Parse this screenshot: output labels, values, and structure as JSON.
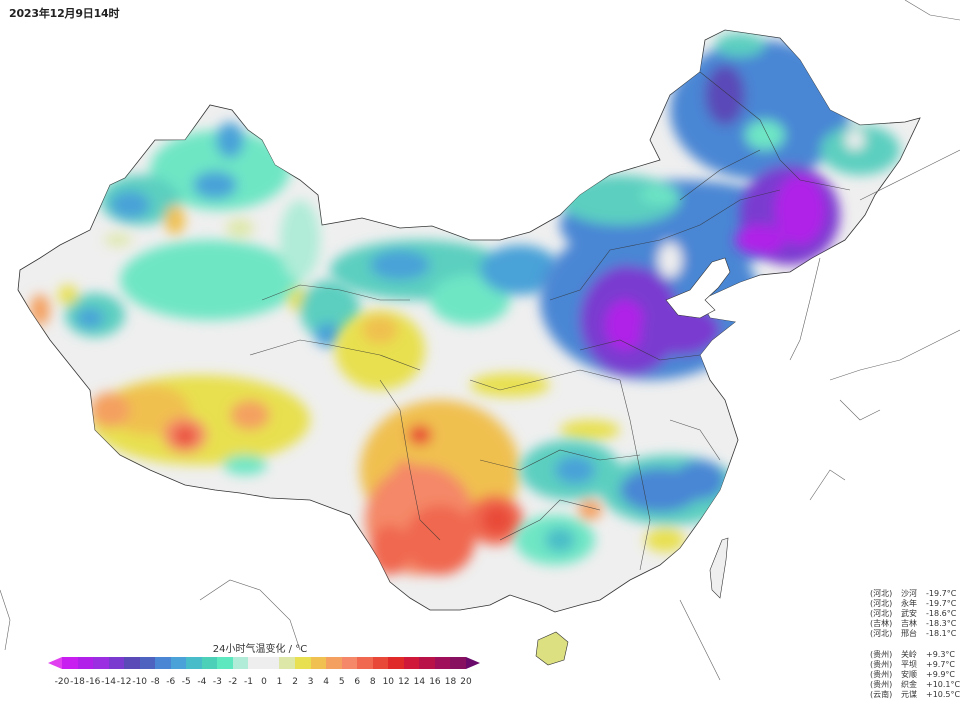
{
  "title": "2023年12月9日14时",
  "legend": {
    "title": "24小时气温变化 / °C",
    "ticks": [
      "-20",
      "-18",
      "-16",
      "-14",
      "-12",
      "-10",
      "-8",
      "-6",
      "-5",
      "-4",
      "-3",
      "-2",
      "-1",
      "0",
      "1",
      "2",
      "3",
      "4",
      "5",
      "6",
      "8",
      "10",
      "12",
      "14",
      "16",
      "18",
      "20"
    ],
    "colors": [
      "#c81ef0",
      "#b020e8",
      "#9a2ee0",
      "#7a3ad0",
      "#5a4ab8",
      "#4e62c0",
      "#4a86d4",
      "#4aa2d8",
      "#48bcc8",
      "#4cd0b8",
      "#5ee8c0",
      "#b0ecd8",
      "#eeeeee",
      "#eeeeee",
      "#dde8a8",
      "#e8e050",
      "#f0c050",
      "#f4a060",
      "#f48868",
      "#f06850",
      "#e84838",
      "#e02a2a",
      "#d0183a",
      "#b81248",
      "#a0105a",
      "#881060"
    ],
    "under_color": "#e040f0",
    "over_color": "#6a0a6a"
  },
  "stations_cold": [
    {
      "province": "(河北)",
      "name": "沙河",
      "value": "-19.7°C"
    },
    {
      "province": "(河北)",
      "name": "永年",
      "value": "-19.7°C"
    },
    {
      "province": "(河北)",
      "name": "武安",
      "value": "-18.6°C"
    },
    {
      "province": "(吉林)",
      "name": "吉林",
      "value": "-18.3°C"
    },
    {
      "province": "(河北)",
      "name": "邢台",
      "value": "-18.1°C"
    }
  ],
  "stations_warm": [
    {
      "province": "(贵州)",
      "name": "关岭",
      "value": "+9.3°C"
    },
    {
      "province": "(贵州)",
      "name": "平坝",
      "value": "+9.7°C"
    },
    {
      "province": "(贵州)",
      "name": "安顺",
      "value": "+9.9°C"
    },
    {
      "province": "(贵州)",
      "name": "织金",
      "value": "+10.1°C"
    },
    {
      "province": "(云南)",
      "name": "元谋",
      "value": "+10.5°C"
    }
  ]
}
